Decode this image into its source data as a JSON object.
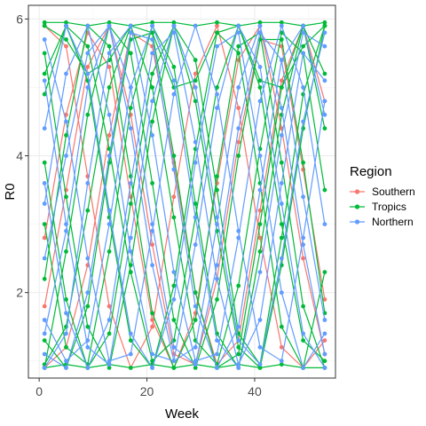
{
  "chart_data": {
    "type": "line",
    "xlabel": "Week",
    "ylabel": "R0",
    "xlim": [
      -2,
      55
    ],
    "ylim": [
      0.75,
      6.2
    ],
    "x_ticks": [
      0,
      20,
      40
    ],
    "y_ticks": [
      2,
      4,
      6
    ],
    "x_tick_labels": [
      "0",
      "20",
      "40"
    ],
    "y_tick_labels": [
      "2",
      "4",
      "6"
    ],
    "grid": true,
    "legend": {
      "title": "Region",
      "position": "right"
    },
    "series": [
      {
        "name": "Southern",
        "color": "#F8766D",
        "lines": [
          {
            "x": [
              1,
              5,
              9,
              13,
              17,
              21,
              25,
              29,
              33,
              37,
              41,
              45,
              49,
              53
            ],
            "y": [
              0.9,
              1.2,
              2.4,
              4.3,
              5.8,
              5.6,
              3.9,
              2.0,
              0.95,
              1.3,
              3.2,
              5.1,
              5.9,
              4.8
            ]
          },
          {
            "x": [
              1,
              5,
              9,
              13,
              17,
              21,
              25,
              29,
              33,
              37,
              41,
              45,
              49,
              53
            ],
            "y": [
              1.8,
              3.5,
              5.3,
              5.9,
              4.6,
              2.7,
              1.1,
              0.95,
              2.2,
              4.2,
              5.7,
              5.6,
              3.8,
              1.9
            ]
          },
          {
            "x": [
              1,
              5,
              9,
              13,
              17,
              21,
              25,
              29,
              33,
              37,
              41,
              45,
              49,
              53
            ],
            "y": [
              5.9,
              5.6,
              3.7,
              1.8,
              0.9,
              1.5,
              3.4,
              5.2,
              5.9,
              4.7,
              2.8,
              1.2,
              0.9,
              1.3
            ]
          },
          {
            "x": [
              1,
              5,
              9,
              13,
              17,
              21,
              25,
              29,
              33,
              37,
              41,
              45,
              49,
              53
            ],
            "y": [
              2.8,
              4.6,
              5.8,
              5.3,
              3.4,
              1.6,
              0.9,
              1.7,
              3.6,
              5.4,
              5.9,
              4.4,
              2.5,
              1.1
            ]
          }
        ]
      },
      {
        "name": "Tropics",
        "color": "#00BA38",
        "lines": [
          {
            "x": [
              1,
              5,
              9,
              13,
              17,
              21,
              25,
              29,
              33,
              37,
              41,
              45,
              49,
              53
            ],
            "y": [
              5.95,
              5.95,
              5.9,
              5.95,
              5.9,
              5.95,
              5.95,
              5.9,
              5.95,
              5.9,
              5.95,
              5.95,
              5.9,
              5.95
            ]
          },
          {
            "x": [
              1,
              5,
              9,
              13,
              17,
              21,
              25,
              29,
              33,
              37,
              41,
              45,
              49,
              53
            ],
            "y": [
              0.9,
              0.95,
              0.9,
              0.95,
              0.9,
              0.95,
              0.9,
              0.95,
              0.9,
              0.95,
              0.9,
              0.95,
              0.9,
              0.9
            ]
          },
          {
            "x": [
              1,
              5,
              9,
              13,
              17,
              21,
              25,
              29,
              33,
              37,
              41,
              45,
              49,
              53
            ],
            "y": [
              5.9,
              5.7,
              5.2,
              5.4,
              5.9,
              5.8,
              5.0,
              5.1,
              5.8,
              5.9,
              5.1,
              5.0,
              5.6,
              5.9
            ]
          },
          {
            "x": [
              1,
              5,
              9,
              13,
              17,
              21,
              25,
              29,
              33,
              37,
              41,
              45,
              49,
              53
            ],
            "y": [
              0.9,
              2.6,
              4.6,
              5.9,
              5.5,
              3.6,
              1.6,
              0.9,
              1.9,
              4.0,
              5.7,
              5.7,
              3.9,
              1.7
            ]
          },
          {
            "x": [
              1,
              5,
              9,
              13,
              17,
              21,
              25,
              29,
              33,
              37,
              41,
              45,
              49,
              53
            ],
            "y": [
              4.9,
              5.9,
              5.1,
              3.1,
              1.3,
              0.9,
              2.1,
              4.1,
              5.8,
              5.5,
              3.6,
              1.5,
              0.9,
              2.3
            ]
          },
          {
            "x": [
              1,
              5,
              9,
              13,
              17,
              21,
              25,
              29,
              33,
              37,
              41,
              45,
              49,
              53
            ],
            "y": [
              3.9,
              1.9,
              0.9,
              1.4,
              3.3,
              5.2,
              5.9,
              4.8,
              2.9,
              1.2,
              0.9,
              2.4,
              4.4,
              5.9
            ]
          },
          {
            "x": [
              1,
              5,
              9,
              13,
              17,
              21,
              25,
              29,
              33,
              37,
              41,
              45,
              49,
              53
            ],
            "y": [
              1.3,
              0.9,
              1.8,
              3.9,
              5.7,
              5.8,
              4.0,
              2.0,
              0.9,
              1.1,
              3.0,
              5.0,
              5.9,
              5.2
            ]
          },
          {
            "x": [
              1,
              5,
              9,
              13,
              17,
              21,
              25,
              29,
              33,
              37,
              41,
              45,
              49,
              53
            ],
            "y": [
              5.5,
              3.4,
              1.5,
              0.9,
              2.4,
              4.5,
              5.9,
              5.4,
              3.5,
              1.4,
              0.95,
              2.8,
              4.9,
              5.9
            ]
          },
          {
            "x": [
              1,
              5,
              9,
              13,
              17,
              21,
              25,
              29,
              33,
              37,
              41,
              45,
              49,
              53
            ],
            "y": [
              2.2,
              4.3,
              5.9,
              5.6,
              3.7,
              1.7,
              0.9,
              1.6,
              3.7,
              5.6,
              5.8,
              3.9,
              1.8,
              0.9
            ]
          },
          {
            "x": [
              1,
              5,
              9,
              13,
              17,
              21,
              25,
              29,
              33,
              37,
              41,
              45,
              49,
              53
            ],
            "y": [
              5.2,
              5.9,
              5.6,
              4.1,
              2.3,
              1.0,
              1.3,
              3.1,
              5.0,
              5.9,
              5.0,
              3.0,
              1.3,
              1.0
            ]
          },
          {
            "x": [
              1,
              5,
              9,
              13,
              17,
              21,
              25,
              29,
              33,
              37,
              41,
              45,
              49,
              53
            ],
            "y": [
              0.95,
              1.5,
              3.2,
              5.0,
              5.9,
              5.0,
              3.1,
              1.3,
              0.95,
              2.1,
              4.1,
              5.8,
              5.5,
              3.5
            ]
          },
          {
            "x": [
              1,
              5,
              9,
              13,
              17,
              21,
              25,
              29,
              33,
              37,
              41,
              45,
              49,
              53
            ],
            "y": [
              3.0,
              1.2,
              0.95,
              2.6,
              4.7,
              5.9,
              5.3,
              3.3,
              1.4,
              0.9,
              2.6,
              4.6,
              5.9,
              4.4
            ]
          }
        ]
      },
      {
        "name": "Northern",
        "color": "#619CFF",
        "lines": [
          {
            "x": [
              1,
              5,
              9,
              13,
              17,
              21,
              25,
              29,
              33,
              37,
              41,
              45,
              49,
              53
            ],
            "y": [
              4.4,
              5.9,
              5.2,
              3.2,
              1.4,
              0.9,
              1.9,
              3.9,
              5.6,
              5.8,
              4.0,
              2.0,
              0.9,
              1.4
            ]
          },
          {
            "x": [
              1,
              5,
              9,
              13,
              17,
              21,
              25,
              29,
              33,
              37,
              41,
              45,
              49,
              53
            ],
            "y": [
              1.1,
              0.9,
              2.0,
              4.0,
              5.8,
              5.7,
              3.8,
              1.8,
              0.9,
              1.5,
              3.5,
              5.4,
              5.9,
              4.6
            ]
          },
          {
            "x": [
              1,
              5,
              9,
              13,
              17,
              21,
              25,
              29,
              33,
              37,
              41,
              45,
              49,
              53
            ],
            "y": [
              3.3,
              5.2,
              5.9,
              4.6,
              2.6,
              1.1,
              1.0,
              2.7,
              4.7,
              5.9,
              5.3,
              3.3,
              1.4,
              0.9
            ]
          },
          {
            "x": [
              1,
              5,
              9,
              13,
              17,
              21,
              25,
              29,
              33,
              37,
              41,
              45,
              49,
              53
            ],
            "y": [
              1.6,
              1.0,
              1.3,
              3.0,
              5.0,
              5.9,
              5.1,
              3.1,
              1.3,
              0.9,
              2.3,
              4.3,
              5.8,
              5.6
            ]
          },
          {
            "x": [
              1,
              5,
              9,
              13,
              17,
              21,
              25,
              29,
              33,
              37,
              41,
              45,
              49,
              53
            ],
            "y": [
              5.7,
              4.5,
              2.5,
              1.0,
              1.1,
              2.9,
              4.9,
              5.9,
              4.9,
              2.9,
              1.2,
              1.0,
              2.8,
              4.8
            ]
          },
          {
            "x": [
              1,
              5,
              9,
              13,
              17,
              21,
              25,
              29,
              33,
              37,
              41,
              45,
              49,
              53
            ],
            "y": [
              2.5,
              4.0,
              5.5,
              5.9,
              4.4,
              2.4,
              1.0,
              1.2,
              3.0,
              5.0,
              5.9,
              4.7,
              2.7,
              1.1
            ]
          },
          {
            "x": [
              1,
              5,
              9,
              13,
              17,
              21,
              25,
              29,
              33,
              37,
              41,
              45,
              49,
              53
            ],
            "y": [
              0.9,
              1.4,
              3.6,
              5.5,
              5.9,
              4.3,
              2.3,
              1.0,
              1.1,
              2.8,
              4.8,
              5.9,
              5.0,
              3.0
            ]
          },
          {
            "x": [
              1,
              5,
              9,
              13,
              17,
              21,
              25,
              29,
              33,
              37,
              41,
              45,
              49,
              53
            ],
            "y": [
              5.1,
              3.0,
              1.2,
              0.95,
              2.8,
              4.8,
              5.9,
              5.0,
              3.1,
              1.3,
              0.95,
              2.5,
              4.5,
              5.8
            ]
          },
          {
            "x": [
              1,
              5,
              9,
              13,
              17,
              21,
              25,
              29,
              33,
              37,
              41,
              45,
              49,
              53
            ],
            "y": [
              1.4,
              2.9,
              5.0,
              5.9,
              5.0,
              3.0,
              1.2,
              0.95,
              2.4,
              4.4,
              5.8,
              5.4,
              3.4,
              1.6
            ]
          },
          {
            "x": [
              1,
              5,
              9,
              13,
              17,
              21,
              25,
              29,
              33,
              37,
              41,
              45,
              49,
              53
            ],
            "y": [
              3.6,
              1.7,
              0.9,
              1.6,
              3.6,
              5.5,
              5.8,
              4.2,
              2.2,
              0.95,
              1.6,
              3.6,
              5.5,
              5.1
            ]
          }
        ]
      }
    ]
  }
}
